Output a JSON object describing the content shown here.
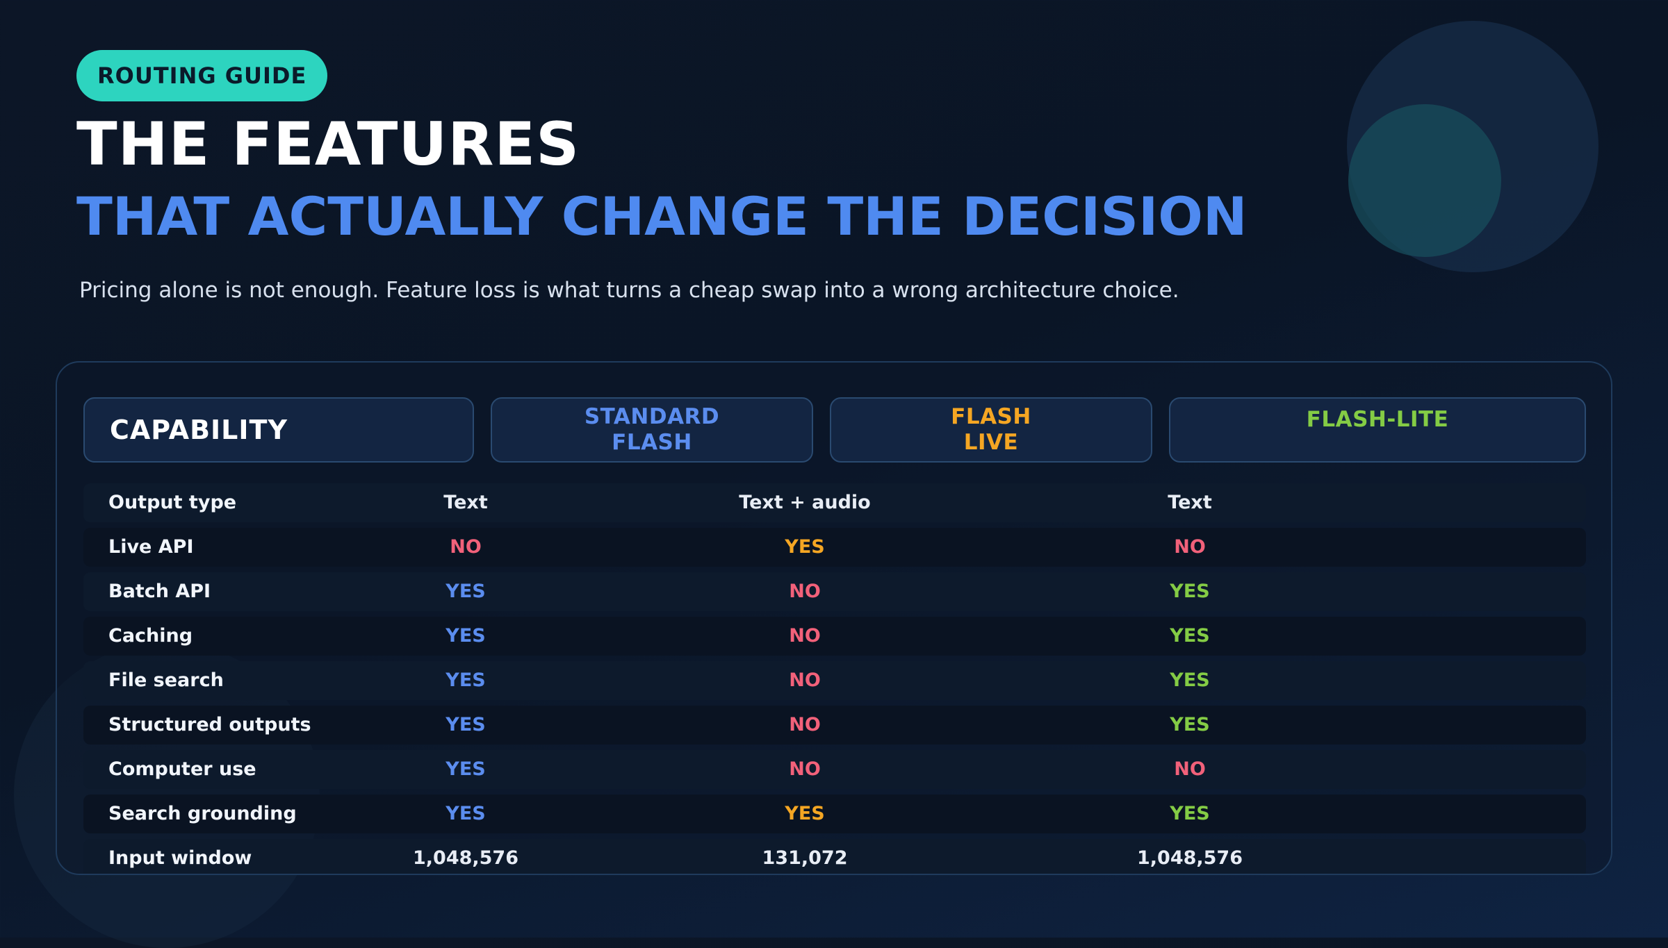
{
  "tag": "ROUTING GUIDE",
  "title_line1": "THE FEATURES",
  "title_line2": "THAT ACTUALLY CHANGE THE DECISION",
  "subtitle": "Pricing alone is not enough. Feature loss is what turns a cheap swap into a wrong architecture choice.",
  "colors": {
    "accent_teal": "#2dd4bf",
    "standard_flash": "#5b8def",
    "flash_live": "#f5a623",
    "flash_lite": "#84cc45",
    "no": "#f2617a"
  },
  "table": {
    "headers": {
      "capability": "CAPABILITY",
      "standard": [
        "STANDARD",
        "FLASH"
      ],
      "live": [
        "FLASH",
        "LIVE"
      ],
      "lite": "FLASH-LITE"
    },
    "rows": [
      {
        "label": "Output type",
        "standard": "Text",
        "live": "Text + audio",
        "lite": "Text"
      },
      {
        "label": "Live API",
        "standard": "NO",
        "live": "YES",
        "lite": "NO"
      },
      {
        "label": "Batch API",
        "standard": "YES",
        "live": "NO",
        "lite": "YES"
      },
      {
        "label": "Caching",
        "standard": "YES",
        "live": "NO",
        "lite": "YES"
      },
      {
        "label": "File search",
        "standard": "YES",
        "live": "NO",
        "lite": "YES"
      },
      {
        "label": "Structured outputs",
        "standard": "YES",
        "live": "NO",
        "lite": "YES"
      },
      {
        "label": "Computer use",
        "standard": "YES",
        "live": "NO",
        "lite": "NO"
      },
      {
        "label": "Search grounding",
        "standard": "YES",
        "live": "YES",
        "lite": "YES"
      },
      {
        "label": "Input window",
        "standard": "1,048,576",
        "live": "131,072",
        "lite": "1,048,576"
      }
    ]
  }
}
